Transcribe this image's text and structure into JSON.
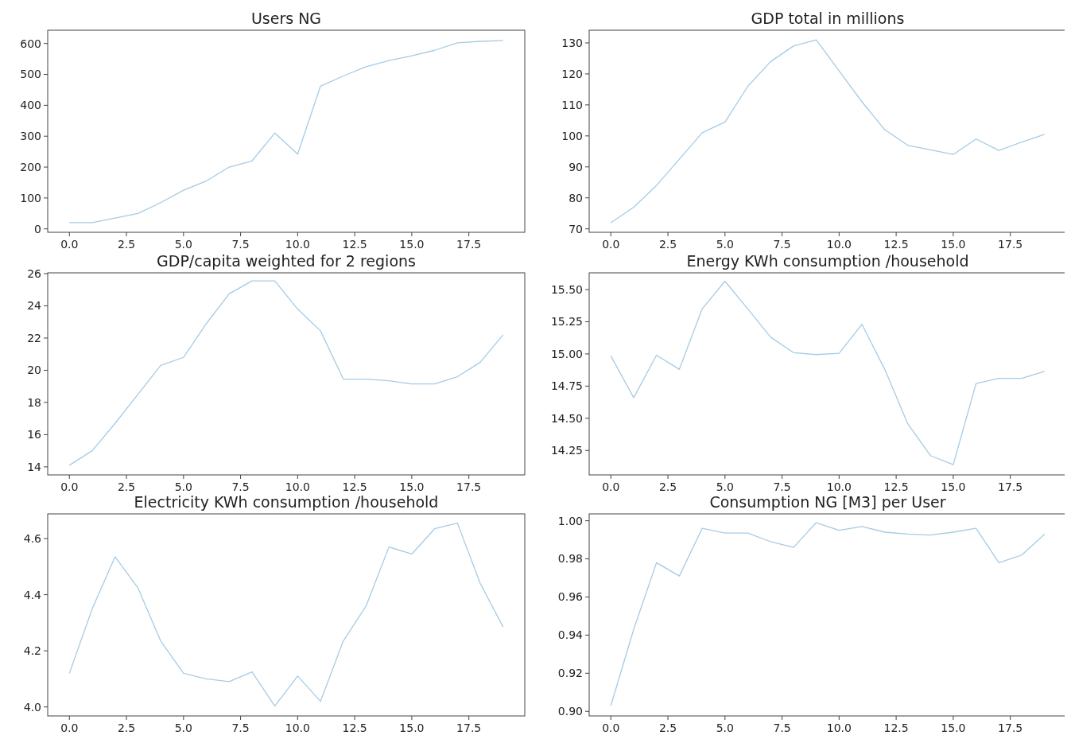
{
  "chart_data": [
    {
      "type": "line",
      "title": "Users NG",
      "x": [
        0,
        1,
        2,
        3,
        4,
        5,
        6,
        7,
        8,
        9,
        10,
        11,
        12,
        13,
        14,
        15,
        16,
        17,
        18,
        19
      ],
      "series": [
        {
          "color": "#a6cbe3",
          "values": [
            20,
            20,
            35,
            50,
            85,
            125,
            155,
            200,
            220,
            310,
            242,
            462,
            495,
            525,
            545,
            560,
            578,
            602,
            607,
            610
          ]
        }
      ],
      "xlim": [
        -0.95,
        19.95
      ],
      "xticks": [
        {
          "value": 0,
          "label": "0.0"
        },
        {
          "value": 2.5,
          "label": "2.5"
        },
        {
          "value": 5,
          "label": "5.0"
        },
        {
          "value": 7.5,
          "label": "7.5"
        },
        {
          "value": 10,
          "label": "10.0"
        },
        {
          "value": 12.5,
          "label": "12.5"
        },
        {
          "value": 15,
          "label": "15.0"
        },
        {
          "value": 17.5,
          "label": "17.5"
        }
      ],
      "ylim": [
        -11,
        643
      ],
      "yticks": [
        0,
        100,
        200,
        300,
        400,
        500,
        600
      ]
    },
    {
      "type": "line",
      "title": "GDP total in millions",
      "x": [
        0,
        1,
        2,
        3,
        4,
        5,
        6,
        7,
        8,
        9,
        10,
        11,
        12,
        13,
        14,
        15,
        16,
        17,
        18,
        19
      ],
      "series": [
        {
          "color": "#a6cbe3",
          "values": [
            72,
            77,
            84,
            92.5,
            101,
            104.5,
            116,
            124,
            129,
            131,
            121,
            111,
            102,
            97,
            95.5,
            94,
            99,
            95.3,
            98,
            100.5
          ]
        }
      ],
      "xlim": [
        -0.95,
        19.95
      ],
      "xticks": [
        {
          "value": 0,
          "label": "0.0"
        },
        {
          "value": 2.5,
          "label": "2.5"
        },
        {
          "value": 5,
          "label": "5.0"
        },
        {
          "value": 7.5,
          "label": "7.5"
        },
        {
          "value": 10,
          "label": "10.0"
        },
        {
          "value": 12.5,
          "label": "12.5"
        },
        {
          "value": 15,
          "label": "15.0"
        },
        {
          "value": 17.5,
          "label": "17.5"
        }
      ],
      "ylim": [
        68.9,
        134.1
      ],
      "yticks": [
        70,
        80,
        90,
        100,
        110,
        120,
        130
      ]
    },
    {
      "type": "line",
      "title": "GDP/capita weighted for 2 regions",
      "x": [
        0,
        1,
        2,
        3,
        4,
        5,
        6,
        7,
        8,
        9,
        10,
        11,
        12,
        13,
        14,
        15,
        16,
        17,
        18,
        19
      ],
      "series": [
        {
          "color": "#a6cbe3",
          "values": [
            14.1,
            15,
            16.7,
            18.5,
            20.3,
            20.8,
            22.9,
            24.75,
            25.55,
            25.55,
            23.8,
            22.45,
            19.45,
            19.45,
            19.35,
            19.15,
            19.15,
            19.6,
            20.5,
            22.2
          ]
        }
      ],
      "xlim": [
        -0.95,
        19.95
      ],
      "xticks": [
        {
          "value": 0,
          "label": "0.0"
        },
        {
          "value": 2.5,
          "label": "2.5"
        },
        {
          "value": 5,
          "label": "5.0"
        },
        {
          "value": 7.5,
          "label": "7.5"
        },
        {
          "value": 10,
          "label": "10.0"
        },
        {
          "value": 12.5,
          "label": "12.5"
        },
        {
          "value": 15,
          "label": "15.0"
        },
        {
          "value": 17.5,
          "label": "17.5"
        }
      ],
      "ylim": [
        13.5,
        26.05
      ],
      "yticks": [
        14,
        16,
        18,
        20,
        22,
        24,
        26
      ]
    },
    {
      "type": "line",
      "title": "Energy KWh consumption /household",
      "x": [
        0,
        1,
        2,
        3,
        4,
        5,
        6,
        7,
        8,
        9,
        10,
        11,
        12,
        13,
        14,
        15,
        16,
        17,
        18,
        19
      ],
      "series": [
        {
          "color": "#a6cbe3",
          "values": [
            14.985,
            14.66,
            14.99,
            14.88,
            15.35,
            15.565,
            15.35,
            15.13,
            15.01,
            14.995,
            15.005,
            15.23,
            14.88,
            14.46,
            14.21,
            14.14,
            14.77,
            14.81,
            14.81,
            14.865
          ]
        }
      ],
      "xlim": [
        -0.95,
        19.95
      ],
      "xticks": [
        {
          "value": 0,
          "label": "0.0"
        },
        {
          "value": 2.5,
          "label": "2.5"
        },
        {
          "value": 5,
          "label": "5.0"
        },
        {
          "value": 7.5,
          "label": "7.5"
        },
        {
          "value": 10,
          "label": "10.0"
        },
        {
          "value": 12.5,
          "label": "12.5"
        },
        {
          "value": 15,
          "label": "15.0"
        },
        {
          "value": 17.5,
          "label": "17.5"
        }
      ],
      "ylim": [
        14.06,
        15.63
      ],
      "yticks": [
        {
          "value": 14.25,
          "label": "14.25"
        },
        {
          "value": 14.5,
          "label": "14.50"
        },
        {
          "value": 14.75,
          "label": "14.75"
        },
        {
          "value": 15,
          "label": "15.00"
        },
        {
          "value": 15.25,
          "label": "15.25"
        },
        {
          "value": 15.5,
          "label": "15.50"
        }
      ]
    },
    {
      "type": "line",
      "title": "Electricity KWh consumption /household",
      "x": [
        0,
        1,
        2,
        3,
        4,
        5,
        6,
        7,
        8,
        9,
        10,
        11,
        12,
        13,
        14,
        15,
        16,
        17,
        18,
        19
      ],
      "series": [
        {
          "color": "#a6cbe3",
          "values": [
            4.12,
            4.35,
            4.535,
            4.425,
            4.235,
            4.12,
            4.1,
            4.09,
            4.125,
            4.003,
            4.11,
            4.02,
            4.235,
            4.36,
            4.57,
            4.545,
            4.635,
            4.655,
            4.44,
            4.285
          ]
        }
      ],
      "xlim": [
        -0.95,
        19.95
      ],
      "xticks": [
        {
          "value": 0,
          "label": "0.0"
        },
        {
          "value": 2.5,
          "label": "2.5"
        },
        {
          "value": 5,
          "label": "5.0"
        },
        {
          "value": 7.5,
          "label": "7.5"
        },
        {
          "value": 10,
          "label": "10.0"
        },
        {
          "value": 12.5,
          "label": "12.5"
        },
        {
          "value": 15,
          "label": "15.0"
        },
        {
          "value": 17.5,
          "label": "17.5"
        }
      ],
      "ylim": [
        3.968,
        4.688
      ],
      "yticks": [
        {
          "value": 4,
          "label": "4.0"
        },
        {
          "value": 4.2,
          "label": "4.2"
        },
        {
          "value": 4.4,
          "label": "4.4"
        },
        {
          "value": 4.6,
          "label": "4.6"
        }
      ]
    },
    {
      "type": "line",
      "title": "Consumption NG [M3] per User",
      "x": [
        0,
        1,
        2,
        3,
        4,
        5,
        6,
        7,
        8,
        9,
        10,
        11,
        12,
        13,
        14,
        15,
        16,
        17,
        18,
        19
      ],
      "series": [
        {
          "color": "#a6cbe3",
          "values": [
            0.903,
            0.943,
            0.978,
            0.971,
            0.996,
            0.9935,
            0.9935,
            0.989,
            0.986,
            0.999,
            0.995,
            0.997,
            0.994,
            0.993,
            0.9925,
            0.994,
            0.996,
            0.978,
            0.982,
            0.993
          ]
        }
      ],
      "xlim": [
        -0.95,
        19.95
      ],
      "xticks": [
        {
          "value": 0,
          "label": "0.0"
        },
        {
          "value": 2.5,
          "label": "2.5"
        },
        {
          "value": 5,
          "label": "5.0"
        },
        {
          "value": 7.5,
          "label": "7.5"
        },
        {
          "value": 10,
          "label": "10.0"
        },
        {
          "value": 12.5,
          "label": "12.5"
        },
        {
          "value": 15,
          "label": "15.0"
        },
        {
          "value": 17.5,
          "label": "17.5"
        }
      ],
      "ylim": [
        0.8976,
        1.0036
      ],
      "yticks": [
        {
          "value": 0.9,
          "label": "0.90"
        },
        {
          "value": 0.92,
          "label": "0.92"
        },
        {
          "value": 0.94,
          "label": "0.94"
        },
        {
          "value": 0.96,
          "label": "0.96"
        },
        {
          "value": 0.98,
          "label": "0.98"
        },
        {
          "value": 1,
          "label": "1.00"
        }
      ]
    }
  ]
}
